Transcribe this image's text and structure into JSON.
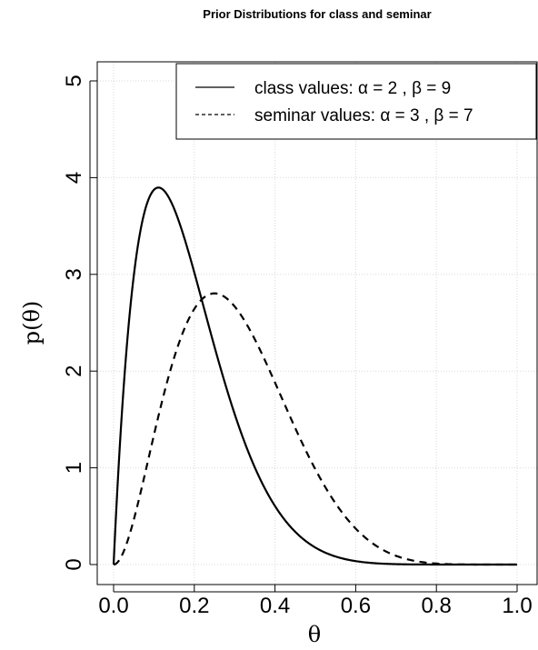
{
  "chart_data": {
    "type": "line",
    "title": "Prior Distributions for class and seminar",
    "xlabel": "θ",
    "ylabel": "p(θ)",
    "xlim": [
      0,
      1
    ],
    "ylim": [
      0,
      5
    ],
    "x_ticks": [
      "0.0",
      "0.2",
      "0.4",
      "0.6",
      "0.8",
      "1.0"
    ],
    "y_ticks": [
      "0",
      "1",
      "2",
      "3",
      "4",
      "5"
    ],
    "grid": true,
    "legend_position": "top-right",
    "series": [
      {
        "name": "class values: α = 2 , β = 9",
        "line_style": "solid",
        "distribution": "beta",
        "alpha": 2,
        "beta": 9
      },
      {
        "name": "seminar values: α = 3 , β = 7",
        "line_style": "dashed",
        "distribution": "beta",
        "alpha": 3,
        "beta": 7
      }
    ]
  }
}
